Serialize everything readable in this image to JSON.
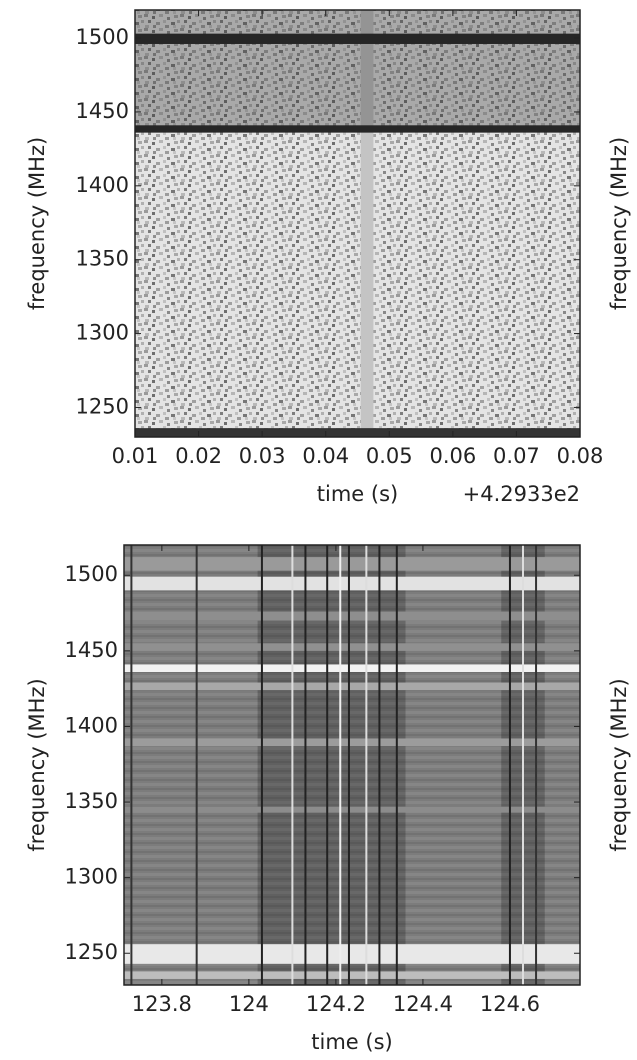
{
  "chart_data": [
    {
      "type": "spectrogram",
      "xlabel": "time (s)",
      "ylabel": "frequency (MHz)",
      "right_ylabel": "frequency (MHz)",
      "offset_text": "+4.2933e2",
      "xlim": [
        0.01,
        0.08
      ],
      "xticks": [
        0.01,
        0.02,
        0.03,
        0.04,
        0.05,
        0.06,
        0.07,
        0.08
      ],
      "ylim": [
        1230,
        1519
      ],
      "yticks": [
        1250,
        1300,
        1350,
        1400,
        1450,
        1500
      ],
      "background": "#e4e4e4",
      "bands": [
        {
          "from": 1441,
          "to": 1519,
          "color": "rgba(60,60,60,0.35)"
        },
        {
          "from": 1496,
          "to": 1503,
          "color": "#262626"
        },
        {
          "from": 1436,
          "to": 1441,
          "color": "#262626"
        },
        {
          "from": 1230,
          "to": 1236,
          "color": "#333333"
        }
      ],
      "stripes": [
        {
          "from": 0.0455,
          "to": 0.0475,
          "color": "#c4c4c4"
        }
      ],
      "lines": []
    },
    {
      "type": "spectrogram",
      "xlabel": "time (s)",
      "ylabel": "frequency (MHz)",
      "right_ylabel": "frequency (MHz)",
      "xlim": [
        123.713,
        124.761
      ],
      "xticks": [
        123.8,
        124.0,
        124.2,
        124.4,
        124.6
      ],
      "ylim": [
        1229,
        1520
      ],
      "yticks": [
        1250,
        1300,
        1350,
        1400,
        1450,
        1500
      ],
      "background": "#7c7c7c",
      "bands": [
        {
          "from": 1503,
          "to": 1512,
          "color": "#9a9a9a"
        },
        {
          "from": 1490,
          "to": 1499,
          "color": "#e2e2e2"
        },
        {
          "from": 1470,
          "to": 1476,
          "color": "#8e8e8e"
        },
        {
          "from": 1450,
          "to": 1455,
          "color": "#909090"
        },
        {
          "from": 1436,
          "to": 1441,
          "color": "#f2f2f2"
        },
        {
          "from": 1424,
          "to": 1429,
          "color": "#a8a8a8"
        },
        {
          "from": 1387,
          "to": 1392,
          "color": "#9c9c9c"
        },
        {
          "from": 1343,
          "to": 1347,
          "color": "#8c8c8c"
        },
        {
          "from": 1243,
          "to": 1256,
          "color": "#e8e8e8"
        },
        {
          "from": 1233,
          "to": 1238,
          "color": "#bdbdbd"
        }
      ],
      "stripes": [
        {
          "from": 124.02,
          "to": 124.36,
          "color": "rgba(0,0,0,0.22)"
        },
        {
          "from": 124.58,
          "to": 124.68,
          "color": "rgba(0,0,0,0.22)"
        }
      ],
      "lines": [
        {
          "x": 123.73,
          "color": "#333333"
        },
        {
          "x": 123.88,
          "color": "#333333"
        },
        {
          "x": 124.03,
          "color": "#222222"
        },
        {
          "x": 124.1,
          "color": "#dddddd"
        },
        {
          "x": 124.13,
          "color": "#222222"
        },
        {
          "x": 124.18,
          "color": "#222222"
        },
        {
          "x": 124.21,
          "color": "#eeeeee"
        },
        {
          "x": 124.23,
          "color": "#222222"
        },
        {
          "x": 124.27,
          "color": "#dddddd"
        },
        {
          "x": 124.3,
          "color": "#222222"
        },
        {
          "x": 124.34,
          "color": "#222222"
        },
        {
          "x": 124.6,
          "color": "#222222"
        },
        {
          "x": 124.63,
          "color": "#dddddd"
        },
        {
          "x": 124.66,
          "color": "#333333"
        }
      ]
    }
  ]
}
